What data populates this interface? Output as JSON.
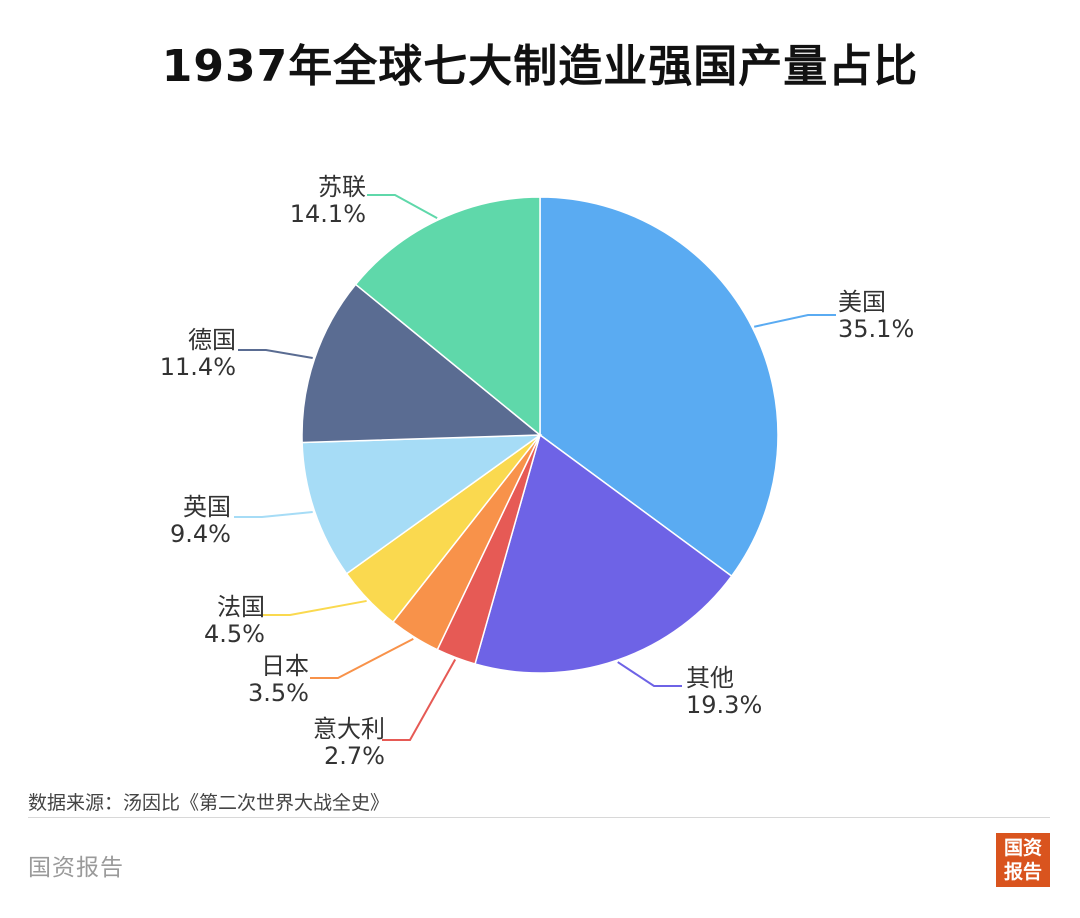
{
  "title": "1937年全球七大制造业强国产量占比",
  "chart_data": {
    "type": "pie",
    "title": "1937年全球七大制造业强国产量占比",
    "slices": [
      {
        "name": "美国",
        "value": 35.1,
        "label": "35.1%",
        "color": "#5aabf2"
      },
      {
        "name": "其他",
        "value": 19.3,
        "label": "19.3%",
        "color": "#6e63e6"
      },
      {
        "name": "意大利",
        "value": 2.7,
        "label": "2.7%",
        "color": "#e65a55"
      },
      {
        "name": "日本",
        "value": 3.5,
        "label": "3.5%",
        "color": "#f8924a"
      },
      {
        "name": "法国",
        "value": 4.5,
        "label": "4.5%",
        "color": "#fad94f"
      },
      {
        "name": "英国",
        "value": 9.4,
        "label": "9.4%",
        "color": "#a6dcf6"
      },
      {
        "name": "德国",
        "value": 11.4,
        "label": "11.4%",
        "color": "#5a6c92"
      },
      {
        "name": "苏联",
        "value": 14.1,
        "label": "14.1%",
        "color": "#5fd8aa"
      }
    ]
  },
  "source": "数据来源：汤因比《第二次世界大战全史》",
  "brand": "国资报告",
  "logo": {
    "line1": "国资",
    "line2": "报告",
    "color": "#d9541e"
  }
}
